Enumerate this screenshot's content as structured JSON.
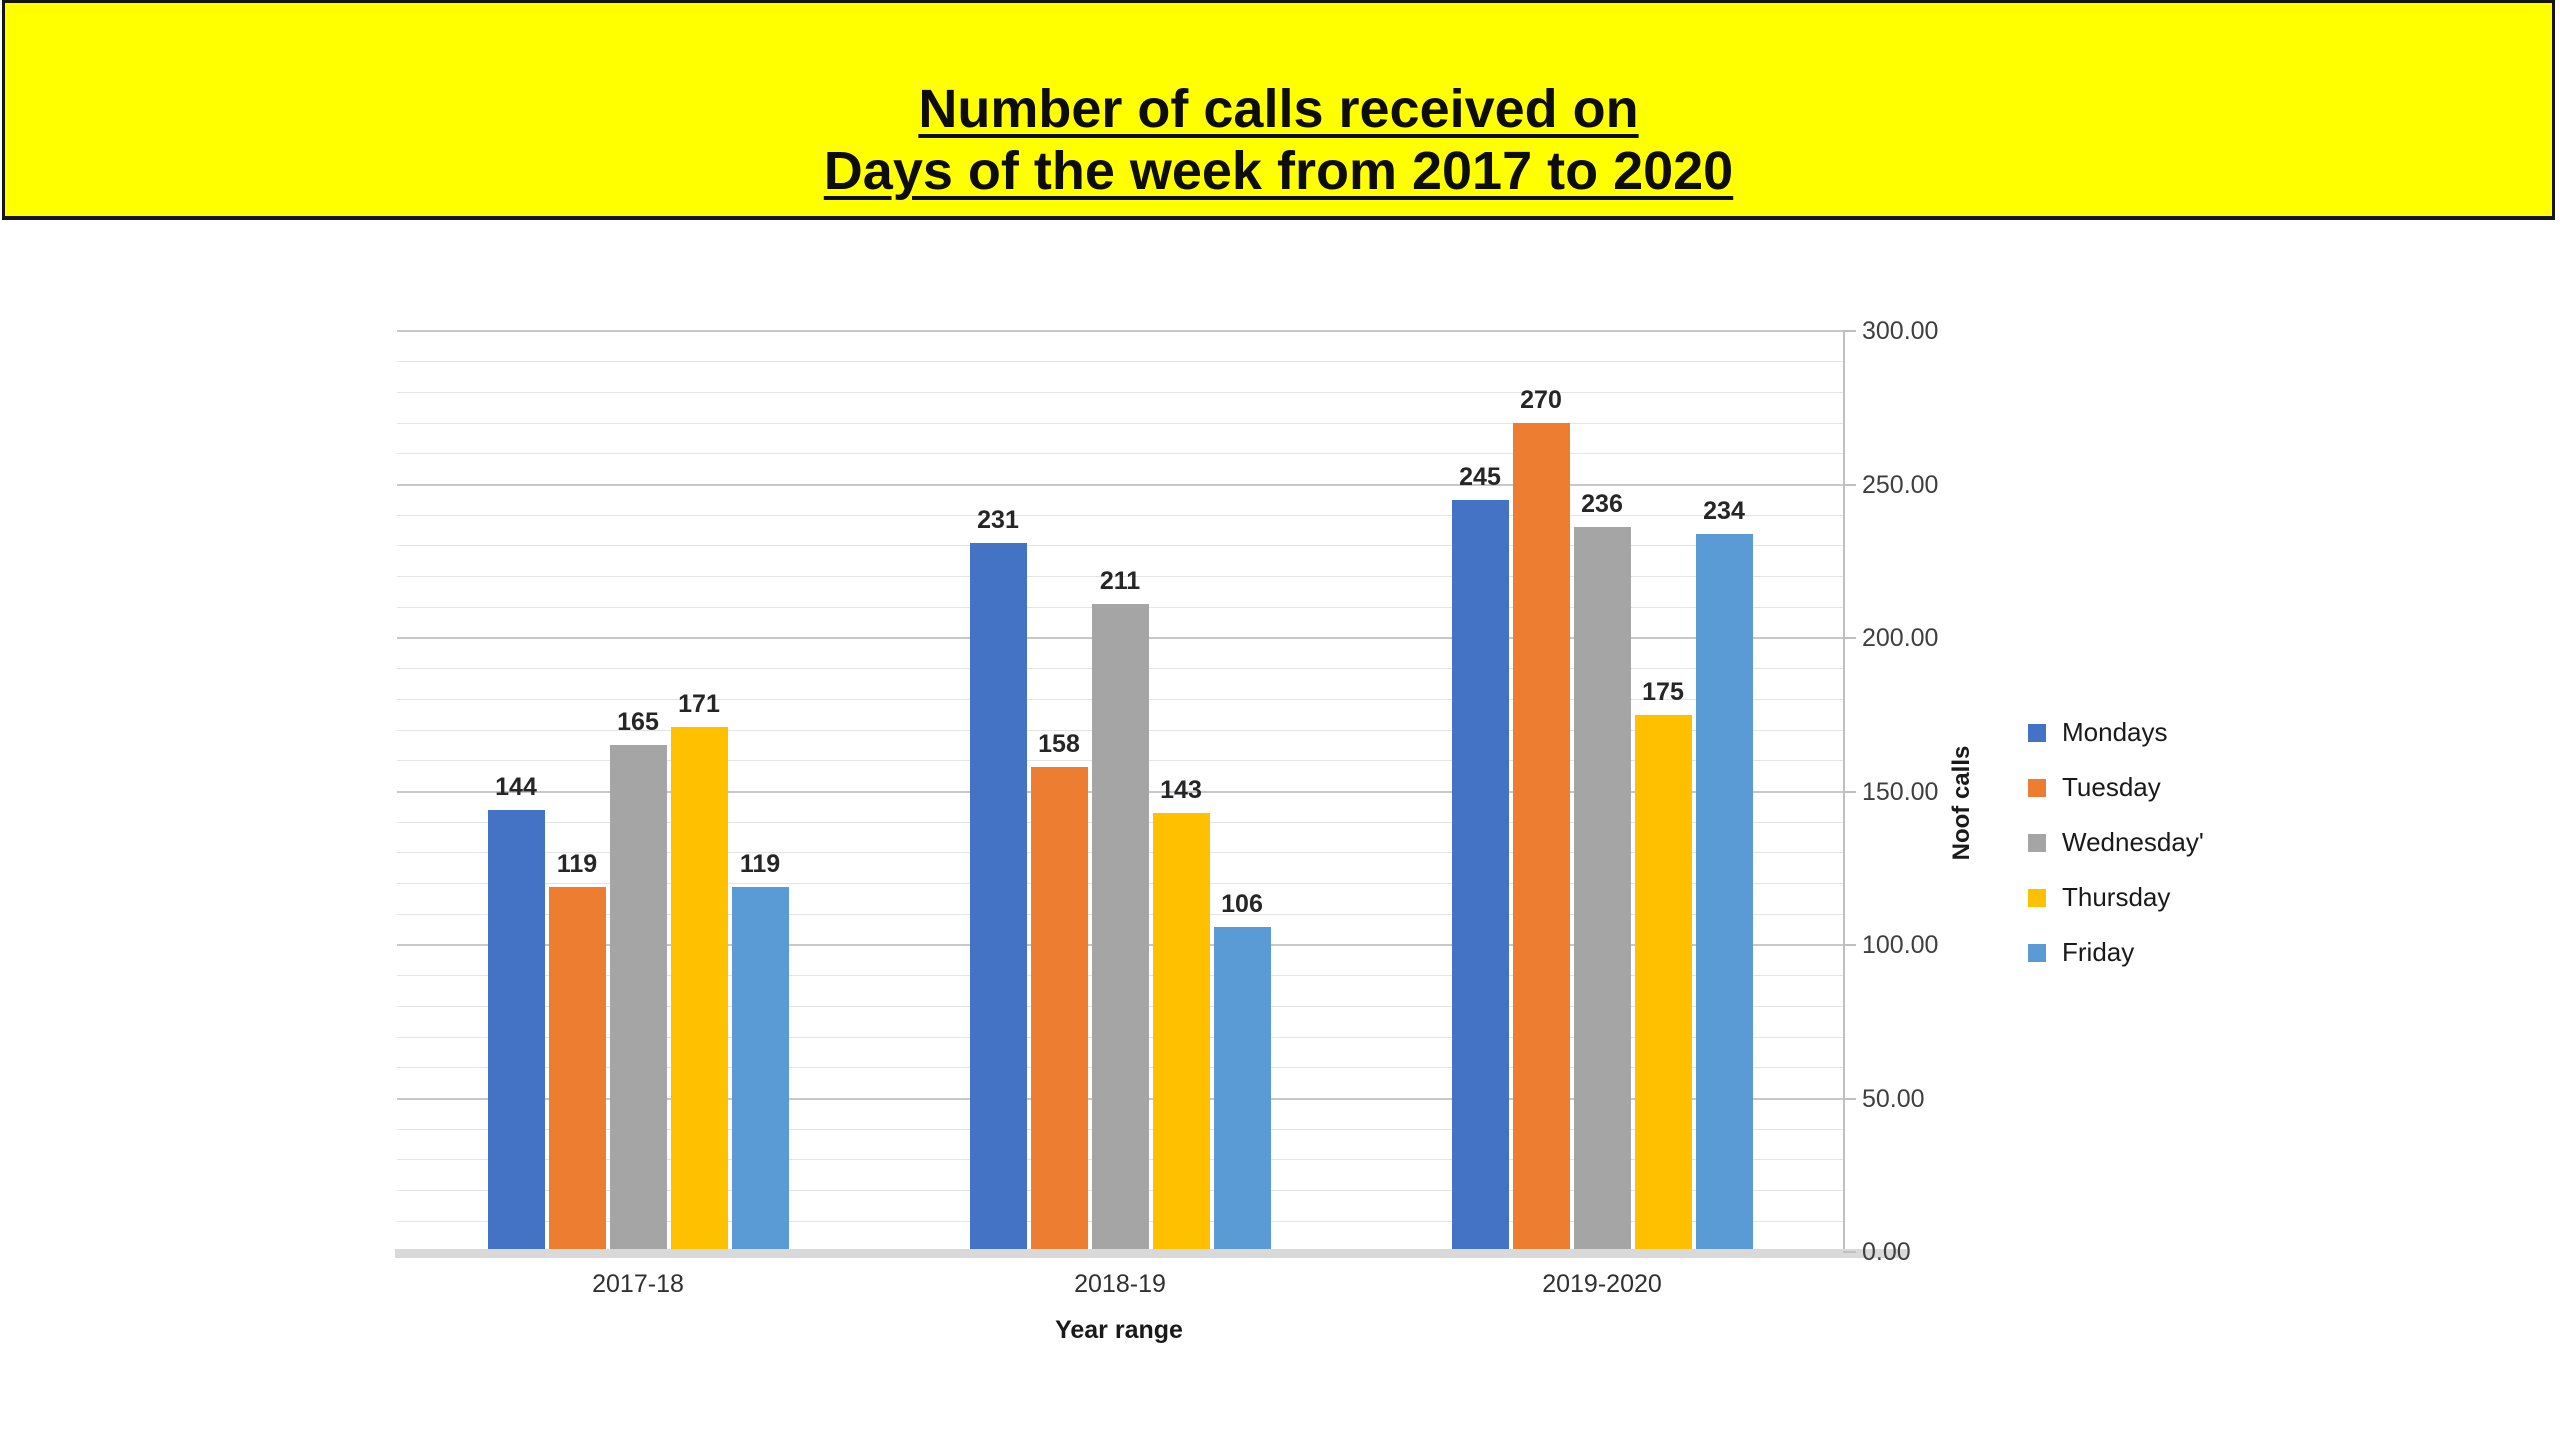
{
  "banner": {
    "title_line1": "Number of calls received on",
    "title_line2": "Days of the week from 2017 to 2020",
    "background": "#FFFF00",
    "border_color": "#161616",
    "text_color": "#0D0D0D"
  },
  "chart_data": {
    "type": "bar",
    "title": "Number of calls received on Days of the week from 2017 to 2020",
    "categories": [
      "2017-18",
      "2018-19",
      "2019-2020"
    ],
    "series": [
      {
        "name": "Mondays",
        "color": "#4472C4",
        "values": [
          144,
          231,
          245
        ]
      },
      {
        "name": "Tuesday",
        "color": "#ED7D31",
        "values": [
          119,
          158,
          270
        ]
      },
      {
        "name": "Wednesday'",
        "color": "#A5A5A5",
        "values": [
          165,
          211,
          236
        ]
      },
      {
        "name": "Thursday",
        "color": "#FFC000",
        "values": [
          171,
          143,
          175
        ]
      },
      {
        "name": "Friday",
        "color": "#5B9BD5",
        "values": [
          119,
          106,
          234
        ]
      }
    ],
    "xlabel": "Year range",
    "ylabel": "Noof calls",
    "ylim": [
      0,
      300
    ],
    "ytick_interval": 50,
    "ytick_labels": [
      "0.00",
      "50.00",
      "100.00",
      "150.00",
      "200.00",
      "250.00",
      "300.00"
    ],
    "minor_grid_interval": 10,
    "grid": true,
    "data_labels": true,
    "legend_position": "right",
    "value_axis_side": "right",
    "colors": {
      "minor_gridline": "#E4E4E4",
      "major_gridline": "#C8C8C8",
      "axis_line": "#BFBFBF",
      "category_axis_band": "#D9D9D9",
      "tick_label": "#3F3F3F",
      "data_label": "#262626"
    }
  }
}
